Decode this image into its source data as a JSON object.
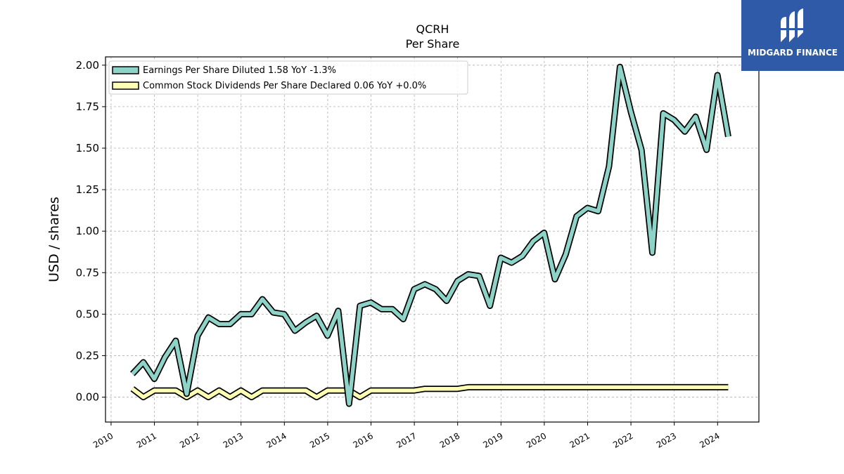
{
  "brand": {
    "name": "MIDGARD FINANCE",
    "color": "#2f5aa8"
  },
  "chart_data": {
    "type": "line",
    "title": "QCRH",
    "subtitle": "Per  Share",
    "ylabel": "USD / shares",
    "xlabel": "",
    "ylim": [
      -0.15,
      2.05
    ],
    "yticks": [
      "0.00",
      "0.25",
      "0.50",
      "0.75",
      "1.00",
      "1.25",
      "1.50",
      "1.75",
      "2.00"
    ],
    "ytick_values": [
      0,
      0.25,
      0.5,
      0.75,
      1.0,
      1.25,
      1.5,
      1.75,
      2.0
    ],
    "xlim": [
      "2009-11-15",
      "2024-12-15"
    ],
    "xticks": [
      "2010",
      "2011",
      "2012",
      "2013",
      "2014",
      "2015",
      "2016",
      "2017",
      "2018",
      "2019",
      "2020",
      "2021",
      "2022",
      "2023",
      "2024"
    ],
    "grid": true,
    "legend_position": "top-left",
    "series": [
      {
        "name": "Earnings Per Share Diluted",
        "legend": "Earnings Per Share Diluted  1.58 YoY -1.3%",
        "color": "#8dd3c7",
        "x": [
          "2010-06-30",
          "2010-09-30",
          "2010-12-31",
          "2011-03-31",
          "2011-06-30",
          "2011-09-30",
          "2011-12-31",
          "2012-03-31",
          "2012-06-30",
          "2012-09-30",
          "2012-12-31",
          "2013-03-31",
          "2013-06-30",
          "2013-09-30",
          "2013-12-31",
          "2014-03-31",
          "2014-06-30",
          "2014-09-30",
          "2014-12-31",
          "2015-03-31",
          "2015-06-30",
          "2015-09-30",
          "2015-12-31",
          "2016-03-31",
          "2016-06-30",
          "2016-09-30",
          "2016-12-31",
          "2017-03-31",
          "2017-06-30",
          "2017-09-30",
          "2017-12-31",
          "2018-03-31",
          "2018-06-30",
          "2018-09-30",
          "2018-12-31",
          "2019-03-31",
          "2019-06-30",
          "2019-09-30",
          "2019-12-31",
          "2020-03-31",
          "2020-06-30",
          "2020-09-30",
          "2020-12-31",
          "2021-03-31",
          "2021-06-30",
          "2021-09-30",
          "2021-12-31",
          "2022-03-31",
          "2022-06-30",
          "2022-09-30",
          "2022-12-31",
          "2023-03-31",
          "2023-06-30",
          "2023-09-30",
          "2023-12-31",
          "2024-03-31"
        ],
        "values": [
          0.14,
          0.21,
          0.11,
          0.24,
          0.34,
          0.02,
          0.37,
          0.48,
          0.44,
          0.44,
          0.5,
          0.5,
          0.59,
          0.51,
          0.5,
          0.4,
          0.45,
          0.49,
          0.37,
          0.52,
          -0.04,
          0.55,
          0.57,
          0.53,
          0.53,
          0.47,
          0.65,
          0.68,
          0.65,
          0.58,
          0.7,
          0.74,
          0.73,
          0.55,
          0.84,
          0.81,
          0.85,
          0.94,
          0.99,
          0.71,
          0.86,
          1.09,
          1.14,
          1.12,
          1.39,
          1.99,
          1.72,
          1.49,
          0.87,
          1.71,
          1.67,
          1.6,
          1.69,
          1.49,
          1.94,
          1.57
        ]
      },
      {
        "name": "Common Stock Dividends Per Share Declared",
        "legend": "Common Stock Dividends Per Share Declared  0.06 YoY +0.0%",
        "color": "#ffffb3",
        "x": [
          "2010-06-30",
          "2010-09-30",
          "2010-12-31",
          "2011-03-31",
          "2011-06-30",
          "2011-09-30",
          "2011-12-31",
          "2012-03-31",
          "2012-06-30",
          "2012-09-30",
          "2012-12-31",
          "2013-03-31",
          "2013-06-30",
          "2013-09-30",
          "2013-12-31",
          "2014-03-31",
          "2014-06-30",
          "2014-09-30",
          "2014-12-31",
          "2015-03-31",
          "2015-06-30",
          "2015-09-30",
          "2015-12-31",
          "2016-03-31",
          "2016-06-30",
          "2016-09-30",
          "2016-12-31",
          "2017-03-31",
          "2017-06-30",
          "2017-09-30",
          "2017-12-31",
          "2018-03-31",
          "2018-06-30",
          "2018-09-30",
          "2018-12-31",
          "2019-03-31",
          "2019-06-30",
          "2019-09-30",
          "2019-12-31",
          "2020-03-31",
          "2020-06-30",
          "2020-09-30",
          "2020-12-31",
          "2021-03-31",
          "2021-06-30",
          "2021-09-30",
          "2021-12-31",
          "2022-03-31",
          "2022-06-30",
          "2022-09-30",
          "2022-12-31",
          "2023-03-31",
          "2023-06-30",
          "2023-09-30",
          "2023-12-31",
          "2024-03-31"
        ],
        "values": [
          0.05,
          0.0,
          0.04,
          0.04,
          0.04,
          0.0,
          0.04,
          0.0,
          0.04,
          0.0,
          0.04,
          0.0,
          0.04,
          0.04,
          0.04,
          0.04,
          0.04,
          0.0,
          0.04,
          0.04,
          0.04,
          0.0,
          0.04,
          0.04,
          0.04,
          0.04,
          0.04,
          0.05,
          0.05,
          0.05,
          0.05,
          0.06,
          0.06,
          0.06,
          0.06,
          0.06,
          0.06,
          0.06,
          0.06,
          0.06,
          0.06,
          0.06,
          0.06,
          0.06,
          0.06,
          0.06,
          0.06,
          0.06,
          0.06,
          0.06,
          0.06,
          0.06,
          0.06,
          0.06,
          0.06,
          0.06
        ]
      }
    ]
  }
}
